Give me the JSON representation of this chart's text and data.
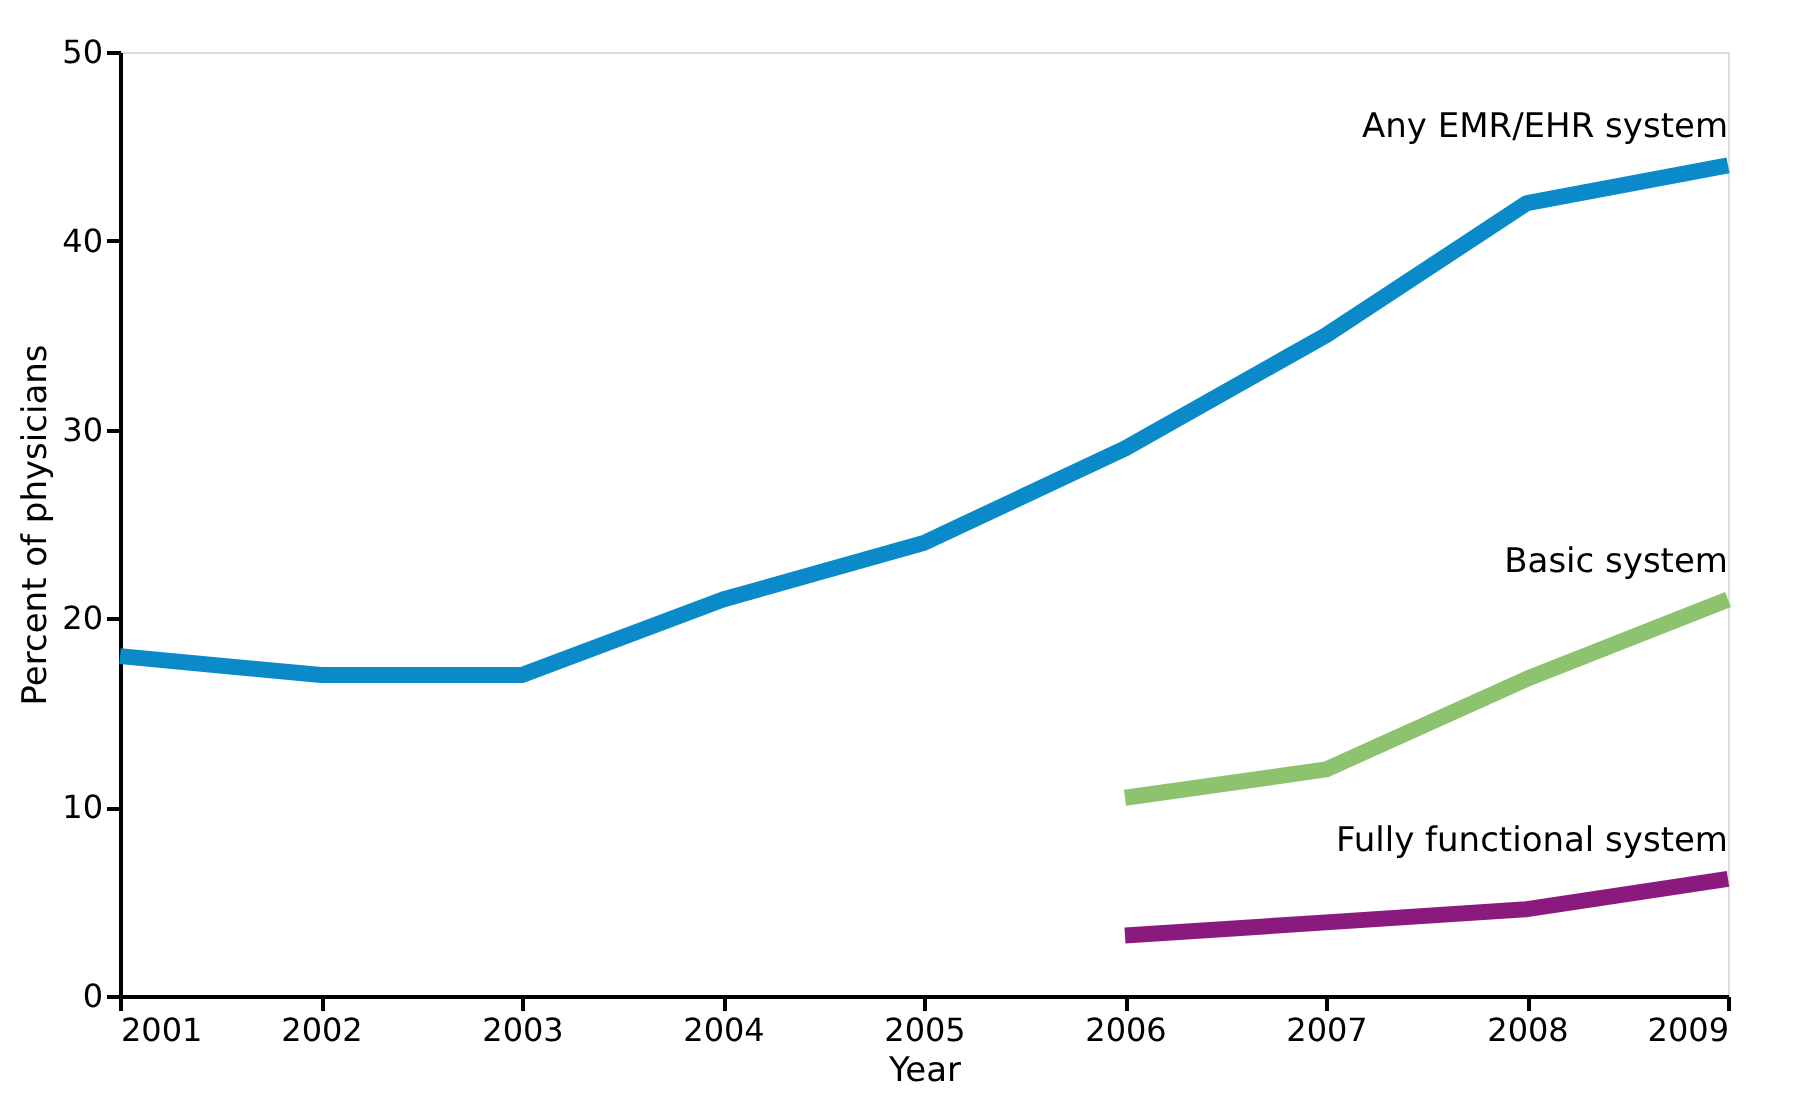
{
  "chart_data": {
    "type": "line",
    "xlabel": "Year",
    "ylabel": "Percent of physicians",
    "xlim": [
      2001,
      2009
    ],
    "xticks": [
      2001,
      2002,
      2003,
      2004,
      2005,
      2006,
      2007,
      2008,
      2009
    ],
    "ylim": [
      0,
      50
    ],
    "yticks": [
      0,
      10,
      20,
      30,
      40,
      50
    ],
    "grid": false,
    "legend": false,
    "marker": "none",
    "line_style": "solid",
    "series": [
      {
        "name": "Any EMR/EHR system",
        "color": "#0a8ac8",
        "x": [
          2001,
          2002,
          2003,
          2004,
          2005,
          2006,
          2007,
          2008,
          2009
        ],
        "values": [
          18,
          17,
          17,
          21,
          24,
          29,
          35,
          42,
          44
        ]
      },
      {
        "name": "Basic system",
        "color": "#8dc26f",
        "x": [
          2006,
          2007,
          2008,
          2009
        ],
        "values": [
          10.5,
          12,
          16.8,
          21
        ]
      },
      {
        "name": "Fully functional system",
        "color": "#8b1a7e",
        "x": [
          2006,
          2007,
          2008,
          2009
        ],
        "values": [
          3.2,
          3.9,
          4.6,
          6.2
        ]
      }
    ]
  }
}
